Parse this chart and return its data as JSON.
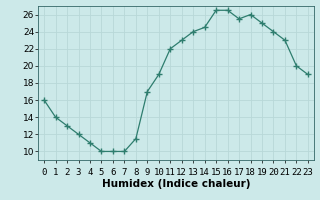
{
  "x": [
    0,
    1,
    2,
    3,
    4,
    5,
    6,
    7,
    8,
    9,
    10,
    11,
    12,
    13,
    14,
    15,
    16,
    17,
    18,
    19,
    20,
    21,
    22,
    23
  ],
  "y": [
    16,
    14,
    13,
    12,
    11,
    10,
    10,
    10,
    11.5,
    17,
    19,
    22,
    23,
    24,
    24.5,
    26.5,
    26.5,
    25.5,
    26,
    25,
    24,
    23,
    20,
    19
  ],
  "line_color": "#2e7d6e",
  "marker_color": "#2e7d6e",
  "bg_color": "#cce9e9",
  "grid_color": "#b8d8d8",
  "xlabel": "Humidex (Indice chaleur)",
  "xlim": [
    -0.5,
    23.5
  ],
  "ylim": [
    9,
    27
  ],
  "yticks": [
    10,
    12,
    14,
    16,
    18,
    20,
    22,
    24,
    26
  ],
  "xtick_labels": [
    "0",
    "1",
    "2",
    "3",
    "4",
    "5",
    "6",
    "7",
    "8",
    "9",
    "10",
    "11",
    "12",
    "13",
    "14",
    "15",
    "16",
    "17",
    "18",
    "19",
    "20",
    "21",
    "22",
    "23"
  ],
  "tick_fontsize": 6.5,
  "label_fontsize": 7.5
}
